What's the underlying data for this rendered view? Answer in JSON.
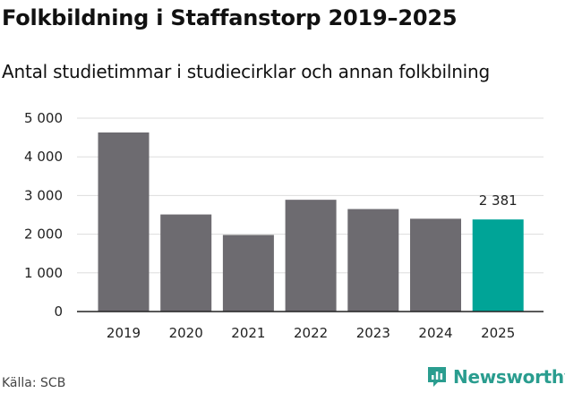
{
  "title": "Folkbildning i Staffanstorp 2019–2025",
  "subtitle": "Antal studietimmar i studiecirklar och annan folkbilning",
  "source": "Källa: SCB",
  "brand": {
    "name": "Newsworthy",
    "logo_icon": "newsworthy-logo-icon",
    "color": "#2a9d8f"
  },
  "chart_data": {
    "type": "bar",
    "categories": [
      "2019",
      "2020",
      "2021",
      "2022",
      "2023",
      "2024",
      "2025"
    ],
    "values": [
      4630,
      2510,
      1980,
      2890,
      2650,
      2400,
      2381
    ],
    "ylim": [
      0,
      5000
    ],
    "yticks": [
      0,
      1000,
      2000,
      3000,
      4000,
      5000
    ],
    "ytick_labels": [
      "0",
      "1 000",
      "2 000",
      "3 000",
      "4 000",
      "5 000"
    ],
    "grid": true,
    "bar_color": "#6d6b70",
    "highlight_color": "#00a497",
    "highlight_index": 6,
    "data_labels": [
      {
        "index": 6,
        "text": "2 381"
      }
    ]
  }
}
